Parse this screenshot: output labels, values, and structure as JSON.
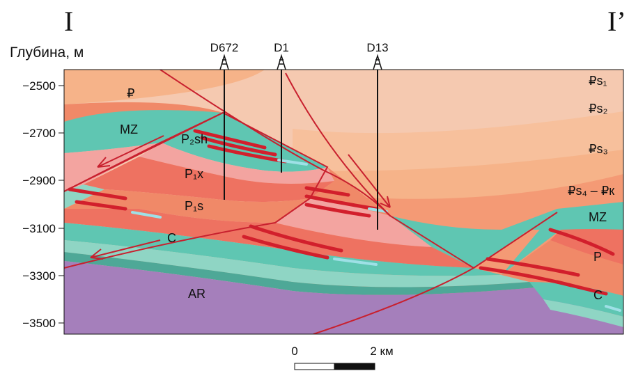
{
  "figure": {
    "section_start": "I",
    "section_end": "I’",
    "axis_title": "Глубина, м"
  },
  "depth_axis": {
    "ticks": [
      "−2500",
      "−2700",
      "−2900",
      "−3100",
      "−3300",
      "−3500"
    ]
  },
  "wells": [
    "D672",
    "D1",
    "D13"
  ],
  "layers": {
    "p_top": "₽",
    "mz_left": "MZ",
    "p2sh": "P₂sh",
    "p1x": "P₁x",
    "p1s": "P₁s",
    "c_left": "C",
    "ar": "AR",
    "ps1": "₽s₁",
    "ps2": "₽s₂",
    "ps3": "₽s₃",
    "ps4pk": "₽s₄ – ₽к",
    "mz_right": "MZ",
    "p_right": "P",
    "c_right": "C"
  },
  "scale": {
    "zero": "0",
    "km": "2 км"
  },
  "colors": {
    "background_top": "#f5c9b0",
    "orange": "#f6b389",
    "salmon": "#f08968",
    "red_layer": "#ee7261",
    "pink": "#f3a4a0",
    "teal": "#5fc6b2",
    "teal_dark": "#4ea897",
    "mint": "#8fd5c4",
    "purple": "#a57fbb",
    "fault_red": "#c8202e",
    "seam_red": "#d21f2c",
    "lens_blue": "#9ee0e6"
  }
}
